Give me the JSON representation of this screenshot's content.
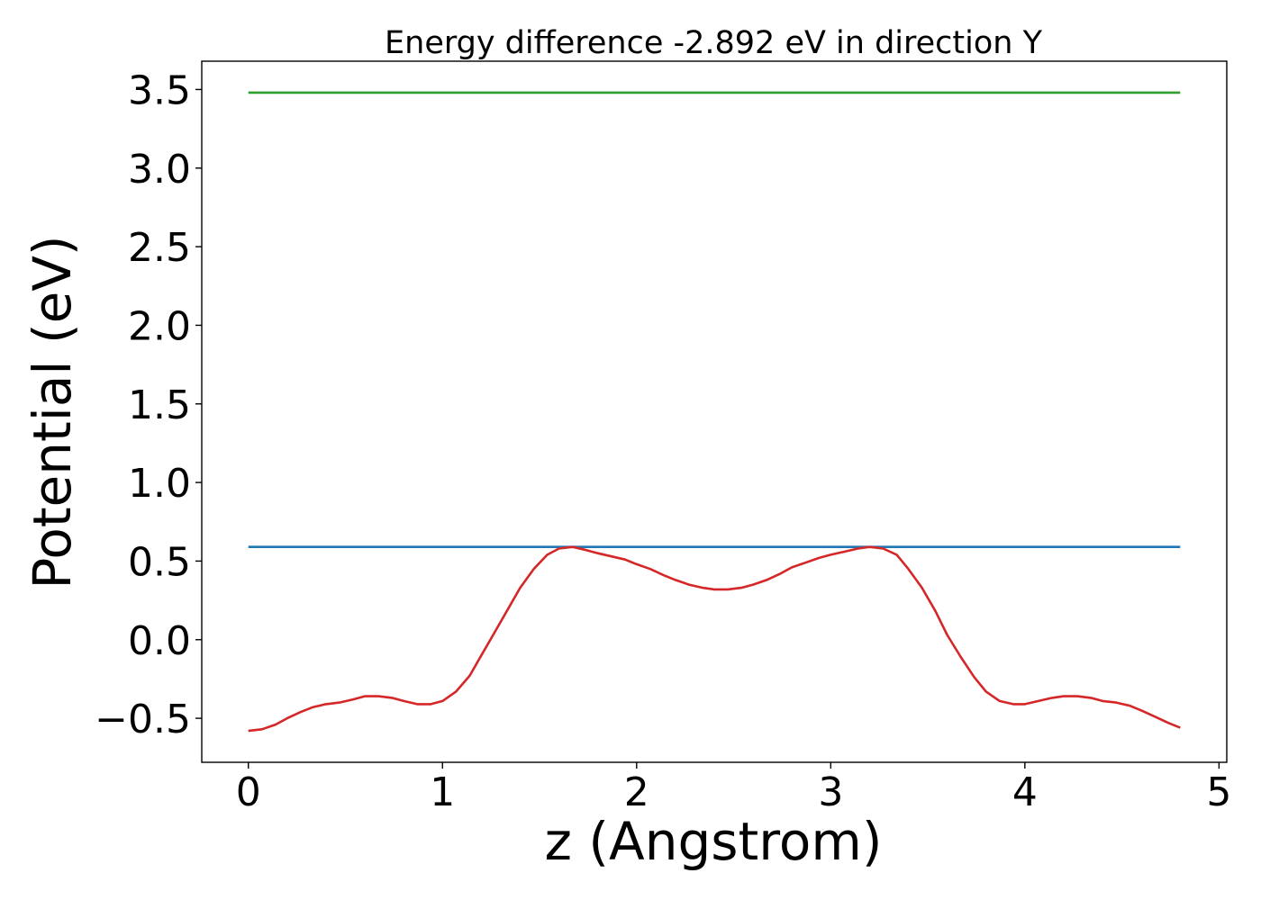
{
  "chart_data": {
    "type": "line",
    "title": "Energy difference -2.892 eV in direction Y",
    "xlabel": "z (Angstrom)",
    "ylabel": "Potential (eV)",
    "xlim": [
      -0.24,
      5.04
    ],
    "ylim": [
      -0.78,
      3.68
    ],
    "xticks": [
      0,
      1,
      2,
      3,
      4,
      5
    ],
    "xtick_labels": [
      "0",
      "1",
      "2",
      "3",
      "4",
      "5"
    ],
    "yticks": [
      -0.5,
      0.0,
      0.5,
      1.0,
      1.5,
      2.0,
      2.5,
      3.0,
      3.5
    ],
    "ytick_labels": [
      "−0.5",
      "0.0",
      "0.5",
      "1.0",
      "1.5",
      "2.0",
      "2.5",
      "3.0",
      "3.5"
    ],
    "grid": false,
    "series": [
      {
        "color": "#2ca02c",
        "x": [
          0,
          4.8
        ],
        "y": [
          3.48,
          3.48
        ]
      },
      {
        "color": "#1f77b4",
        "x": [
          0,
          4.8
        ],
        "y": [
          0.59,
          0.59
        ]
      },
      {
        "color": "#d62728",
        "x": [
          0,
          0.07,
          0.14,
          0.2,
          0.27,
          0.33,
          0.4,
          0.47,
          0.54,
          0.6,
          0.67,
          0.74,
          0.8,
          0.87,
          0.94,
          1.0,
          1.07,
          1.14,
          1.2,
          1.27,
          1.34,
          1.4,
          1.47,
          1.54,
          1.6,
          1.67,
          1.74,
          1.8,
          1.87,
          1.94,
          2.0,
          2.07,
          2.14,
          2.2,
          2.27,
          2.34,
          2.4,
          2.47,
          2.54,
          2.6,
          2.67,
          2.74,
          2.8,
          2.87,
          2.94,
          3.0,
          3.07,
          3.14,
          3.2,
          3.27,
          3.34,
          3.4,
          3.47,
          3.54,
          3.6,
          3.67,
          3.74,
          3.8,
          3.87,
          3.94,
          4.0,
          4.07,
          4.14,
          4.2,
          4.27,
          4.34,
          4.4,
          4.47,
          4.54,
          4.6,
          4.67,
          4.74,
          4.8
        ],
        "y": [
          -0.58,
          -0.57,
          -0.54,
          -0.5,
          -0.46,
          -0.43,
          -0.41,
          -0.4,
          -0.38,
          -0.36,
          -0.36,
          -0.37,
          -0.39,
          -0.41,
          -0.41,
          -0.39,
          -0.33,
          -0.23,
          -0.1,
          0.05,
          0.2,
          0.33,
          0.45,
          0.54,
          0.58,
          0.59,
          0.57,
          0.55,
          0.53,
          0.51,
          0.48,
          0.45,
          0.41,
          0.38,
          0.35,
          0.33,
          0.32,
          0.32,
          0.33,
          0.35,
          0.38,
          0.42,
          0.46,
          0.49,
          0.52,
          0.54,
          0.56,
          0.58,
          0.59,
          0.58,
          0.54,
          0.45,
          0.33,
          0.18,
          0.03,
          -0.11,
          -0.24,
          -0.33,
          -0.39,
          -0.41,
          -0.41,
          -0.39,
          -0.37,
          -0.36,
          -0.36,
          -0.37,
          -0.39,
          -0.4,
          -0.42,
          -0.45,
          -0.49,
          -0.53,
          -0.56
        ]
      }
    ]
  }
}
